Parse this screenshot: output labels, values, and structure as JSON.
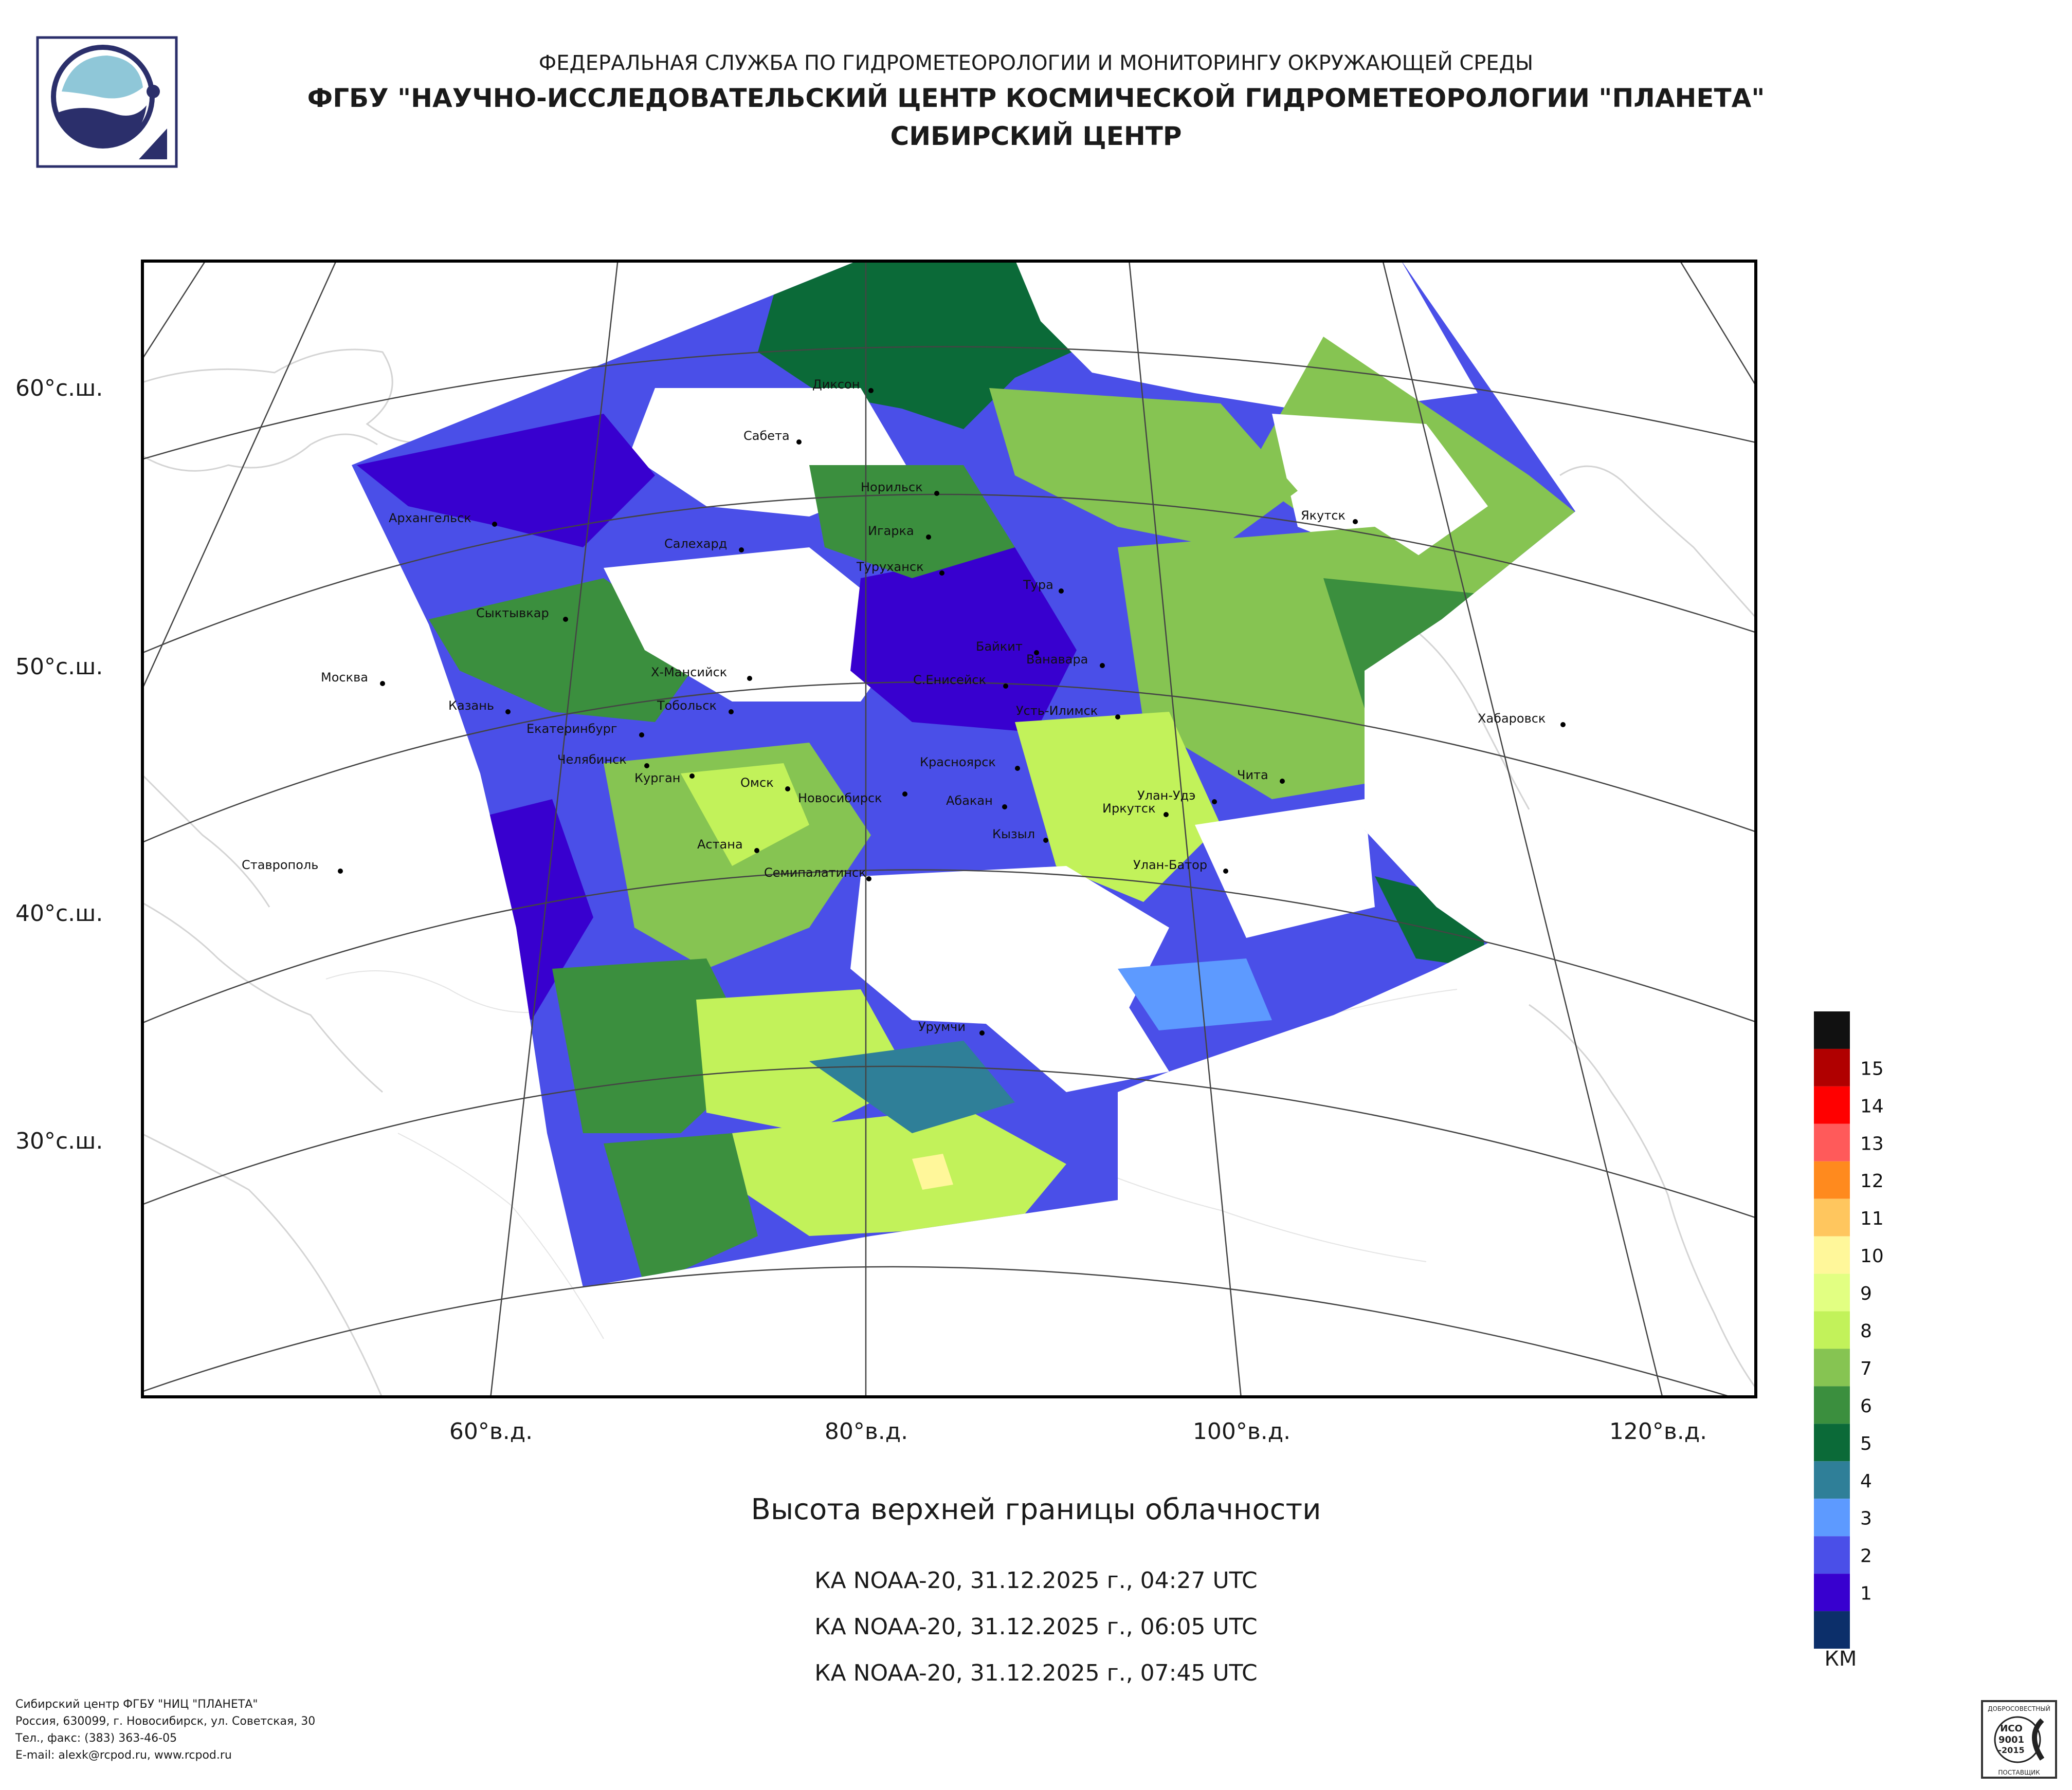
{
  "header": {
    "line1": "ФЕДЕРАЛЬНАЯ СЛУЖБА ПО ГИДРОМЕТЕОРОЛОГИИ И МОНИТОРИНГУ ОКРУЖАЮЩЕЙ СРЕДЫ",
    "line2": "ФГБУ \"НАУЧНО-ИССЛЕДОВАТЕЛЬСКИЙ ЦЕНТР КОСМИЧЕСКОЙ ГИДРОМЕТЕОРОЛОГИИ \"ПЛАНЕТА\"",
    "line3": "СИБИРСКИЙ ЦЕНТР"
  },
  "lat_labels": [
    "60°с.ш.",
    "50°с.ш.",
    "40°с.ш.",
    "30°с.ш."
  ],
  "lon_labels": [
    "60°в.д.",
    "80°в.д.",
    "100°в.д.",
    "120°в.д."
  ],
  "cities": [
    "Диксон",
    "Сабета",
    "Норильск",
    "Архангельск",
    "Салехард",
    "Игарка",
    "Туруханск",
    "Якутск",
    "Тура",
    "Сыктывкар",
    "Байкит",
    "Ванавара",
    "Москва",
    "Х-Мансийск",
    "С.Енисейск",
    "Усть-Илимск",
    "Хабаровск",
    "Казань",
    "Тобольск",
    "Екатеринбург",
    "Челябинск",
    "Курган",
    "Красноярск",
    "Чита",
    "Омск",
    "Новосибирск",
    "Абакан",
    "Улан-Удэ",
    "Иркутск",
    "Кызыл",
    "Астана",
    "Ставрополь",
    "Улан-Батор",
    "Семипалатинск",
    "Урумчи"
  ],
  "title": "Высота верхней границы облачности",
  "passes": [
    "КА NOAA-20, 31.12.2025 г., 04:27 UTC",
    "КА NOAA-20, 31.12.2025 г., 06:05 UTC",
    "КА NOAA-20, 31.12.2025 г., 07:45 UTC"
  ],
  "legend": {
    "unit": "КМ",
    "items": [
      {
        "label": "",
        "color": "#111111"
      },
      {
        "label": "15",
        "color": "#b00000"
      },
      {
        "label": "14",
        "color": "#ff0000"
      },
      {
        "label": "13",
        "color": "#ff5a5a"
      },
      {
        "label": "12",
        "color": "#ff8a1e"
      },
      {
        "label": "11",
        "color": "#ffc65e"
      },
      {
        "label": "10",
        "color": "#fff79a"
      },
      {
        "label": "9",
        "color": "#e2ff82"
      },
      {
        "label": "8",
        "color": "#c2f25a"
      },
      {
        "label": "7",
        "color": "#86c452"
      },
      {
        "label": "6",
        "color": "#3b8f3e"
      },
      {
        "label": "5",
        "color": "#0b6a38"
      },
      {
        "label": "4",
        "color": "#2f7f98"
      },
      {
        "label": "3",
        "color": "#5d9aff"
      },
      {
        "label": "2",
        "color": "#4a4fe8"
      },
      {
        "label": "1",
        "color": "#3800cf"
      },
      {
        "label": "",
        "color": "#0c2f6a"
      }
    ]
  },
  "footer": {
    "line1": "Сибирский центр ФГБУ \"НИЦ \"ПЛАНЕТА\"",
    "line2": "Россия, 630099, г. Новосибирск, ул. Советская, 30",
    "line3": "Тел., факс: (383) 363-46-05",
    "line4": "E-mail: alexk@rcpod.ru, www.rcpod.ru"
  },
  "certificate": {
    "top": "ДОБРОСОВЕСТНЫЙ",
    "l1": "ИСО",
    "l2": "9001",
    "l3": "-2015",
    "bottom": "ПОСТАВЩИК"
  }
}
